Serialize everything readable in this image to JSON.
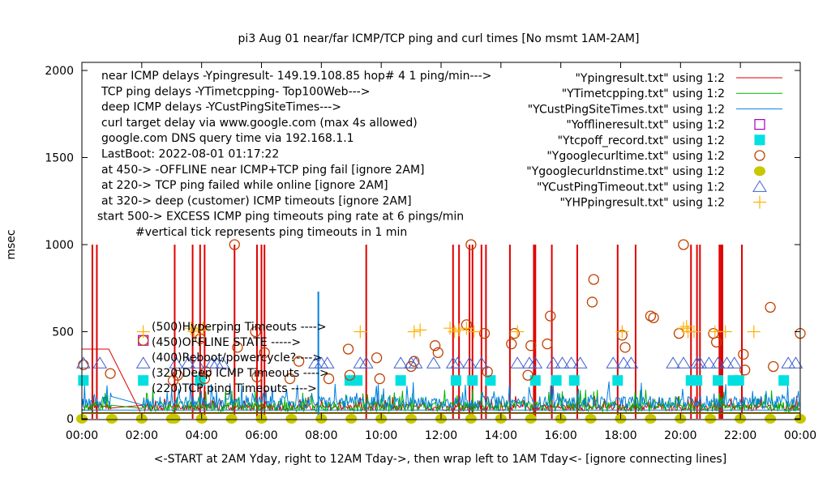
{
  "chart_data": {
    "type": "line",
    "title": "pi3 Aug 01  near/far ICMP/TCP ping and curl times [No msmt 1AM-2AM]",
    "xlabel": "<-START at 2AM Yday, right to 12AM Tday->, then wrap left to 1AM Tday<- [ignore connecting lines]",
    "ylabel": "msec",
    "xlim": [
      0,
      24
    ],
    "ylim": [
      0,
      2000
    ],
    "x_units": "hours",
    "x_ticks": [
      "00:00",
      "02:00",
      "04:00",
      "06:00",
      "08:00",
      "10:00",
      "12:00",
      "14:00",
      "16:00",
      "18:00",
      "20:00",
      "22:00",
      "00:00"
    ],
    "y_ticks": [
      "0",
      "500",
      "1000",
      "1500",
      "2000"
    ],
    "grid": false,
    "legend_position": "top-right",
    "annotations_block": [
      "near ICMP delays -Ypingresult- 149.19.108.85 hop# 4 1 ping/min--->",
      "TCP ping delays -YTimetcpping- Top100Web--->",
      "deep ICMP delays -YCustPingSiteTimes--->",
      "curl target delay via www.google.com (max 4s allowed)",
      "google.com DNS query time via 192.168.1.1",
      "LastBoot: 2022-08-01 01:17:22",
      "at 450-> -OFFLINE near ICMP+TCP ping fail [ignore 2AM]",
      "at 220-> TCP ping failed while online [ignore 2AM]",
      "at 320-> deep (customer) ICMP timeouts [ignore 2AM]",
      "start 500-> EXCESS ICMP ping timeouts ping rate at 6 pings/min",
      "#vertical tick represents ping timeouts in 1 min"
    ],
    "level_labels": [
      "(500)Hyperping Timeouts ---->",
      "(450)OFFLINE STATE ----->",
      "(400)Reboot/powercycle?---->",
      "(320)Deep ICMP Timeouts ---->",
      "(220)TCP ping Timeouts ---->"
    ],
    "series": [
      {
        "name": "\"Ypingresult.txt\" using 1:2",
        "style": "line",
        "color": "#e00000",
        "baseline_ms": 45,
        "noise_ms": 40,
        "spikes_hours": [
          0.35,
          0.5,
          3.1,
          3.7,
          3.95,
          4.1,
          5.1,
          5.85,
          6.0,
          6.1,
          9.5,
          12.4,
          12.6,
          12.95,
          13.05,
          13.35,
          13.5,
          14.3,
          15.1,
          15.15,
          15.7,
          16.55,
          17.9,
          18.5,
          20.35,
          20.55,
          20.65,
          21.3,
          21.35,
          21.4,
          22.05
        ],
        "spike_ms": 1000
      },
      {
        "name": "\"YTimetcpping.txt\" using 1:2",
        "style": "line",
        "color": "#00b000",
        "baseline_ms": 40,
        "noise_ms": 60
      },
      {
        "name": "\"YCustPingSiteTimes.txt\" using 1:2",
        "style": "line",
        "color": "#0080e0",
        "baseline_ms": 60,
        "noise_ms": 70,
        "spikes_hours": [
          7.9
        ],
        "spike_ms": 730
      },
      {
        "name": "\"Yofflineresult.txt\" using 1:2",
        "style": "open-square",
        "color": "#a000c0",
        "points": [
          [
            2.05,
            450
          ]
        ]
      },
      {
        "name": "\"Ytcpoff_record.txt\" using 1:2",
        "style": "filled-square",
        "color": "#00e0e0",
        "points": [
          [
            0.05,
            220
          ],
          [
            2.05,
            220
          ],
          [
            3.95,
            220
          ],
          [
            8.95,
            220
          ],
          [
            9.2,
            220
          ],
          [
            10.65,
            220
          ],
          [
            12.5,
            220
          ],
          [
            13.05,
            220
          ],
          [
            13.65,
            220
          ],
          [
            15.15,
            220
          ],
          [
            15.85,
            220
          ],
          [
            16.45,
            220
          ],
          [
            17.9,
            220
          ],
          [
            20.35,
            220
          ],
          [
            20.55,
            220
          ],
          [
            21.25,
            220
          ],
          [
            21.75,
            220
          ],
          [
            21.95,
            220
          ],
          [
            23.45,
            220
          ]
        ]
      },
      {
        "name": "\"Ygooglecurltime.txt\" using 1:2",
        "style": "open-circle",
        "color": "#c04000",
        "points": [
          [
            0.05,
            310
          ],
          [
            0.95,
            260
          ],
          [
            2.05,
            450
          ],
          [
            3.05,
            220
          ],
          [
            3.2,
            250
          ],
          [
            3.95,
            460
          ],
          [
            4.1,
            230
          ],
          [
            4.15,
            270
          ],
          [
            5.1,
            1000
          ],
          [
            5.2,
            410
          ],
          [
            5.8,
            500
          ],
          [
            5.85,
            240
          ],
          [
            6.1,
            380
          ],
          [
            6.95,
            230
          ],
          [
            7.25,
            330
          ],
          [
            8.25,
            230
          ],
          [
            8.9,
            400
          ],
          [
            8.95,
            250
          ],
          [
            9.85,
            350
          ],
          [
            9.95,
            230
          ],
          [
            11.0,
            300
          ],
          [
            11.1,
            330
          ],
          [
            11.8,
            420
          ],
          [
            11.9,
            380
          ],
          [
            12.85,
            540
          ],
          [
            13.0,
            1000
          ],
          [
            13.45,
            490
          ],
          [
            13.55,
            270
          ],
          [
            14.35,
            430
          ],
          [
            14.45,
            490
          ],
          [
            14.9,
            250
          ],
          [
            15.0,
            420
          ],
          [
            15.55,
            430
          ],
          [
            15.65,
            590
          ],
          [
            17.05,
            670
          ],
          [
            17.1,
            800
          ],
          [
            18.05,
            480
          ],
          [
            18.15,
            410
          ],
          [
            19.0,
            590
          ],
          [
            19.1,
            580
          ],
          [
            19.95,
            490
          ],
          [
            20.1,
            1000
          ],
          [
            21.1,
            490
          ],
          [
            21.2,
            440
          ],
          [
            22.1,
            370
          ],
          [
            22.15,
            280
          ],
          [
            23.0,
            640
          ],
          [
            23.1,
            300
          ],
          [
            24.0,
            490
          ]
        ]
      },
      {
        "name": "\"Ygooglecurldnstime.txt\" using 1:2",
        "style": "filled-circle",
        "color": "#c8c800",
        "points": [
          [
            0.0,
            0
          ],
          [
            1.0,
            0
          ],
          [
            2.0,
            0
          ],
          [
            3.0,
            0
          ],
          [
            3.1,
            0
          ],
          [
            4.0,
            0
          ],
          [
            5.0,
            0
          ],
          [
            6.0,
            0
          ],
          [
            7.0,
            0
          ],
          [
            8.0,
            0
          ],
          [
            9.0,
            0
          ],
          [
            10.0,
            0
          ],
          [
            11.0,
            0
          ],
          [
            12.0,
            0
          ],
          [
            13.0,
            0
          ],
          [
            14.0,
            0
          ],
          [
            15.0,
            0
          ],
          [
            16.0,
            0
          ],
          [
            17.0,
            0
          ],
          [
            18.0,
            0
          ],
          [
            19.0,
            0
          ],
          [
            20.0,
            0
          ],
          [
            21.0,
            0
          ],
          [
            22.0,
            0
          ],
          [
            23.0,
            0
          ],
          [
            24.0,
            0
          ]
        ]
      },
      {
        "name": "\"YCustPingTimeout.txt\" using 1:2",
        "style": "open-triangle",
        "color": "#4060d0",
        "points": [
          [
            0.05,
            320
          ],
          [
            0.6,
            320
          ],
          [
            2.05,
            320
          ],
          [
            3.15,
            320
          ],
          [
            3.55,
            320
          ],
          [
            3.85,
            320
          ],
          [
            4.35,
            320
          ],
          [
            4.5,
            320
          ],
          [
            4.7,
            320
          ],
          [
            7.8,
            320
          ],
          [
            8.0,
            320
          ],
          [
            8.2,
            320
          ],
          [
            9.3,
            320
          ],
          [
            9.5,
            320
          ],
          [
            10.65,
            320
          ],
          [
            11.0,
            320
          ],
          [
            11.15,
            320
          ],
          [
            11.75,
            320
          ],
          [
            12.4,
            320
          ],
          [
            12.55,
            320
          ],
          [
            12.95,
            320
          ],
          [
            13.35,
            320
          ],
          [
            14.55,
            320
          ],
          [
            14.95,
            320
          ],
          [
            15.15,
            320
          ],
          [
            15.75,
            320
          ],
          [
            16.05,
            320
          ],
          [
            16.35,
            320
          ],
          [
            16.65,
            320
          ],
          [
            17.75,
            320
          ],
          [
            18.1,
            320
          ],
          [
            18.35,
            320
          ],
          [
            19.75,
            320
          ],
          [
            20.1,
            320
          ],
          [
            20.55,
            320
          ],
          [
            20.65,
            320
          ],
          [
            20.95,
            320
          ],
          [
            21.25,
            320
          ],
          [
            21.55,
            320
          ],
          [
            21.8,
            320
          ],
          [
            23.6,
            320
          ],
          [
            23.85,
            320
          ]
        ]
      },
      {
        "name": "\"YHPpingresult.txt\" using 1:2",
        "style": "plus",
        "color": "#ffb000",
        "points": [
          [
            2.05,
            500
          ],
          [
            3.65,
            520
          ],
          [
            3.75,
            500
          ],
          [
            3.9,
            510
          ],
          [
            4.05,
            520
          ],
          [
            9.3,
            500
          ],
          [
            11.1,
            500
          ],
          [
            11.3,
            510
          ],
          [
            12.3,
            520
          ],
          [
            12.45,
            500
          ],
          [
            12.6,
            510
          ],
          [
            12.85,
            520
          ],
          [
            13.1,
            500
          ],
          [
            14.55,
            500
          ],
          [
            18.05,
            500
          ],
          [
            20.1,
            520
          ],
          [
            20.2,
            530
          ],
          [
            20.25,
            500
          ],
          [
            20.45,
            500
          ],
          [
            21.15,
            500
          ],
          [
            21.5,
            500
          ],
          [
            22.45,
            500
          ]
        ]
      }
    ]
  }
}
